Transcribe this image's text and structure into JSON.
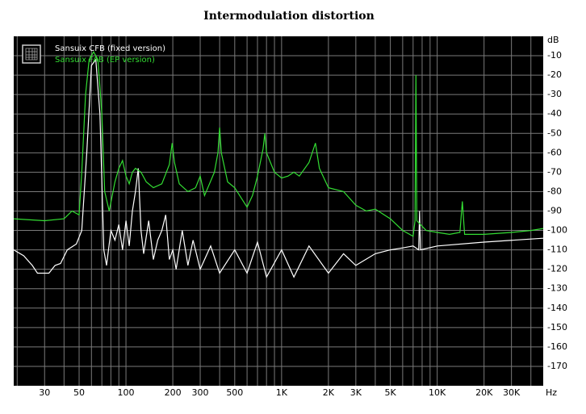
{
  "chart_data": {
    "type": "line",
    "title": "Intermodulation distortion",
    "y_unit": "dB",
    "x_unit": "Hz",
    "xscale": "log",
    "xlim": [
      19,
      48000
    ],
    "ylim": [
      -180,
      0
    ],
    "xticks": [
      30,
      50,
      100,
      200,
      300,
      500,
      {
        "value": 1000,
        "label": "1K"
      },
      {
        "value": 2000,
        "label": "2K"
      },
      {
        "value": 3000,
        "label": "3K"
      },
      {
        "value": 5000,
        "label": "5K"
      },
      {
        "value": 10000,
        "label": "10K"
      },
      {
        "value": 20000,
        "label": "20K"
      },
      {
        "value": 30000,
        "label": "30K"
      }
    ],
    "xgrid": [
      20,
      30,
      40,
      50,
      60,
      70,
      80,
      90,
      100,
      200,
      300,
      400,
      500,
      600,
      700,
      800,
      900,
      1000,
      2000,
      3000,
      4000,
      5000,
      6000,
      7000,
      8000,
      9000,
      10000,
      20000,
      30000,
      40000
    ],
    "yticks": [
      -10,
      -20,
      -30,
      -40,
      -50,
      -60,
      -70,
      -80,
      -90,
      -100,
      -110,
      -120,
      -130,
      -140,
      -150,
      -160,
      -170
    ],
    "grid": true,
    "legend": "upper left",
    "series": [
      {
        "name": "Sansuix CFB (fixed version)",
        "color": "#ffffff",
        "x": [
          19,
          22,
          25,
          27,
          32,
          35,
          38,
          42,
          48,
          52,
          56,
          60,
          64,
          68,
          72,
          75,
          80,
          85,
          90,
          95,
          100,
          105,
          110,
          115,
          120,
          125,
          130,
          140,
          150,
          160,
          170,
          180,
          190,
          200,
          210,
          230,
          250,
          270,
          300,
          350,
          400,
          500,
          600,
          700,
          800,
          1000,
          1200,
          1500,
          2000,
          2500,
          3000,
          4000,
          5000,
          6000,
          7000,
          7600,
          7700,
          7800,
          10000,
          20000,
          48000
        ],
        "values": [
          -110,
          -113,
          -118,
          -122,
          -122,
          -118,
          -117,
          -110,
          -107,
          -100,
          -60,
          -15,
          -12,
          -40,
          -110,
          -118,
          -100,
          -105,
          -97,
          -110,
          -95,
          -108,
          -90,
          -80,
          -68,
          -100,
          -112,
          -95,
          -115,
          -105,
          -100,
          -92,
          -115,
          -110,
          -120,
          -100,
          -118,
          -105,
          -120,
          -108,
          -122,
          -110,
          -122,
          -106,
          -124,
          -110,
          -124,
          -108,
          -122,
          -112,
          -118,
          -112,
          -110,
          -109,
          -108,
          -110,
          -90,
          -110,
          -108,
          -106,
          -104
        ]
      },
      {
        "name": "Sansuix FAB (EP version)",
        "color": "#33dd33",
        "x": [
          19,
          30,
          40,
          45,
          50,
          52,
          55,
          58,
          62,
          66,
          70,
          73,
          78,
          85,
          90,
          95,
          100,
          105,
          110,
          115,
          125,
          135,
          150,
          170,
          190,
          198,
          205,
          220,
          250,
          280,
          300,
          320,
          370,
          390,
          400,
          410,
          450,
          500,
          600,
          650,
          700,
          760,
          780,
          800,
          900,
          1000,
          1100,
          1200,
          1300,
          1500,
          1650,
          1750,
          2000,
          2500,
          3000,
          3500,
          4000,
          5000,
          6000,
          7000,
          7200,
          7300,
          7400,
          8500,
          10000,
          12000,
          14000,
          14500,
          15000,
          20000,
          30000,
          40000,
          48000
        ],
        "values": [
          -94,
          -95,
          -94,
          -90,
          -92,
          -70,
          -30,
          -12,
          -8,
          -12,
          -40,
          -80,
          -90,
          -75,
          -68,
          -64,
          -72,
          -76,
          -70,
          -68,
          -70,
          -75,
          -78,
          -76,
          -66,
          -55,
          -65,
          -76,
          -80,
          -78,
          -72,
          -82,
          -70,
          -60,
          -47,
          -60,
          -75,
          -78,
          -88,
          -82,
          -72,
          -58,
          -50,
          -60,
          -70,
          -73,
          -72,
          -70,
          -72,
          -65,
          -55,
          -68,
          -78,
          -80,
          -87,
          -90,
          -89,
          -94,
          -100,
          -103,
          -95,
          -20,
          -95,
          -100,
          -101,
          -102,
          -101,
          -85,
          -102,
          -102,
          -101,
          -100,
          -99
        ]
      }
    ]
  }
}
